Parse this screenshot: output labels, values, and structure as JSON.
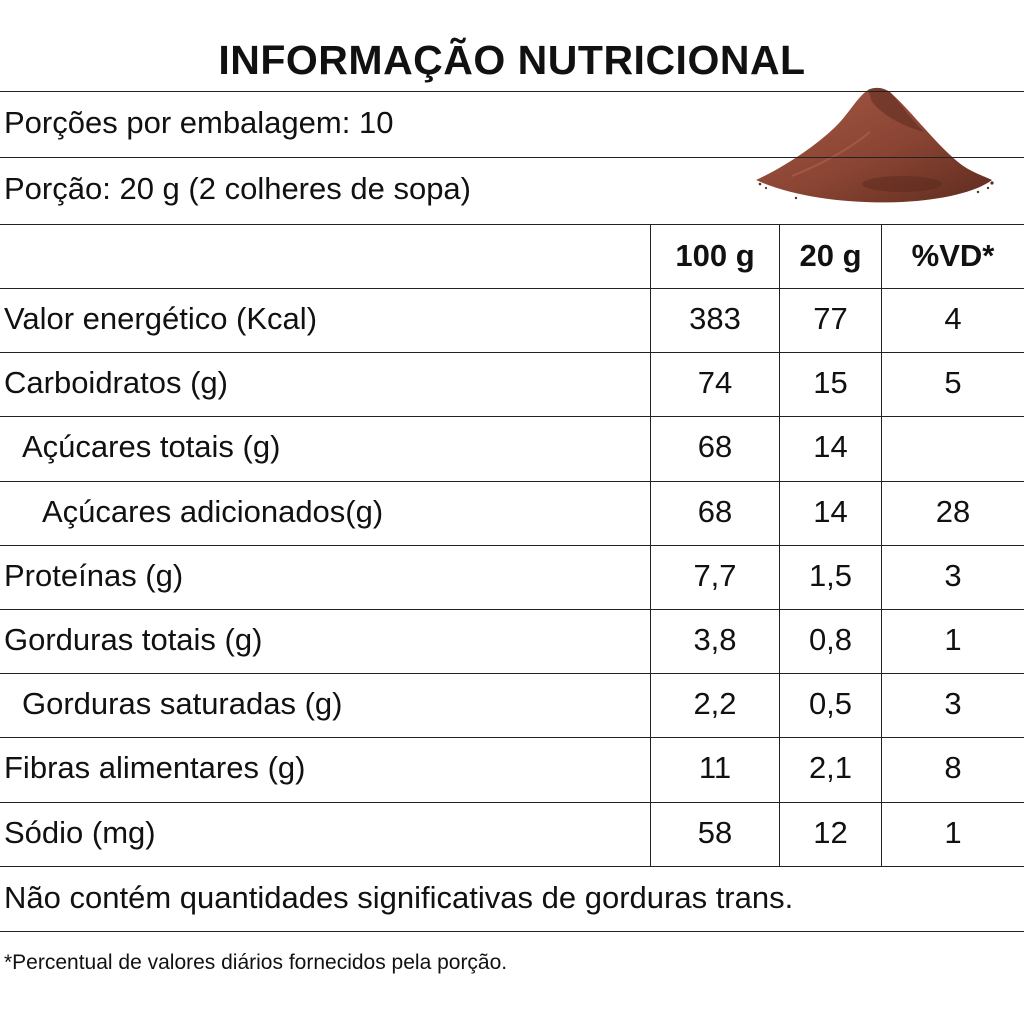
{
  "title": "INFORMAÇÃO NUTRICIONAL",
  "servings_per_package": "Porções por embalagem: 10",
  "serving_size": "Porção: 20 g (2 colheres de sopa)",
  "image_icon": "cocoa-powder-icon",
  "colors": {
    "powder_dark": "#5e2c1f",
    "powder_mid": "#8a4433",
    "powder_light": "#a65a45",
    "rule": "#222222"
  },
  "columns": [
    "100 g",
    "20 g",
    "%VD*"
  ],
  "rows": [
    {
      "label": "Valor energético (Kcal)",
      "indent": 0,
      "per100": "383",
      "per20": "77",
      "vd": "4"
    },
    {
      "label": "Carboidratos (g)",
      "indent": 0,
      "per100": "74",
      "per20": "15",
      "vd": "5"
    },
    {
      "label": "Açúcares totais (g)",
      "indent": 1,
      "per100": "68",
      "per20": "14",
      "vd": ""
    },
    {
      "label": "Açúcares adicionados(g)",
      "indent": 2,
      "per100": "68",
      "per20": "14",
      "vd": "28"
    },
    {
      "label": "Proteínas (g)",
      "indent": 0,
      "per100": "7,7",
      "per20": "1,5",
      "vd": "3"
    },
    {
      "label": "Gorduras totais (g)",
      "indent": 0,
      "per100": "3,8",
      "per20": "0,8",
      "vd": "1"
    },
    {
      "label": "Gorduras saturadas (g)",
      "indent": 1,
      "per100": "2,2",
      "per20": "0,5",
      "vd": "3"
    },
    {
      "label": "Fibras alimentares (g)",
      "indent": 0,
      "per100": "11",
      "per20": "2,1",
      "vd": "8"
    },
    {
      "label": "Sódio (mg)",
      "indent": 0,
      "per100": "58",
      "per20": "12",
      "vd": "1"
    }
  ],
  "trans_fat_note": "Não contém quantidades significativas de gorduras trans.",
  "footnote": "*Percentual de valores diários fornecidos pela porção."
}
